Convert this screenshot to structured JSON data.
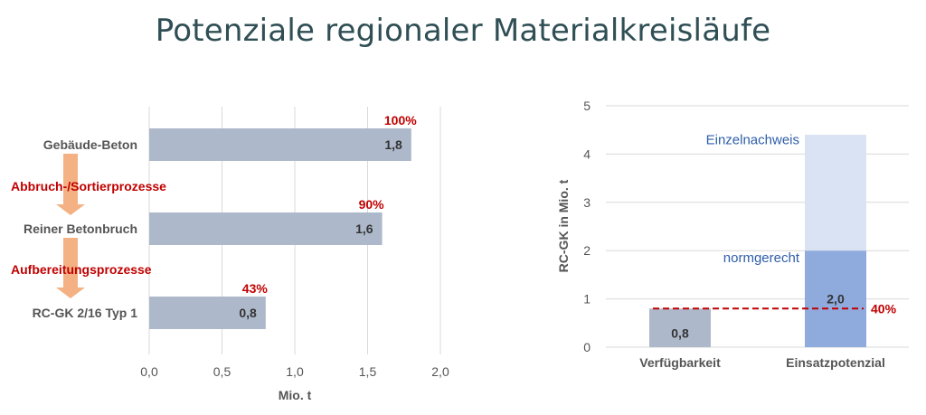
{
  "title": "Potenziale regionaler Materialkreisläufe",
  "colors": {
    "title": "#2f4f55",
    "bar_gray": "#adb9ca",
    "bar_blue_dark": "#8faadc",
    "bar_blue_light": "#dae3f3",
    "accent_red": "#c00000",
    "arrow": "#f4b183",
    "label_blue": "#2e5ea8"
  },
  "chart_data": [
    {
      "type": "bar",
      "orientation": "horizontal",
      "categories": [
        "Gebäude-Beton",
        "Reiner Betonbruch",
        "RC-GK 2/16 Typ 1"
      ],
      "values": [
        1.8,
        1.6,
        0.8
      ],
      "value_labels": [
        "1,8",
        "1,6",
        "0,8"
      ],
      "percent_labels": [
        "100%",
        "90%",
        "43%"
      ],
      "process_labels": [
        "Abbruch-/Sortierprozesse",
        "Aufbereitungsprozesse"
      ],
      "xlabel": "Mio. t",
      "xlim": [
        0,
        2
      ],
      "xticks": [
        "0,0",
        "0,5",
        "1,0",
        "1,5",
        "2,0"
      ],
      "grid": "vertical"
    },
    {
      "type": "bar",
      "stacked": true,
      "categories": [
        "Verfügbarkeit",
        "Einsatzpotenzial"
      ],
      "series": [
        {
          "name": "normgerecht",
          "values": [
            0.8,
            2.0
          ]
        },
        {
          "name": "Einzelnachweis",
          "values": [
            0,
            2.4
          ]
        }
      ],
      "value_labels": [
        "0,8",
        "2,0"
      ],
      "reference_line": {
        "value": 0.8,
        "label": "40%"
      },
      "ylabel": "RC-GK in Mio. t",
      "ylim": [
        0,
        5
      ],
      "yticks": [
        "0",
        "1",
        "2",
        "3",
        "4",
        "5"
      ],
      "grid": "horizontal"
    }
  ]
}
